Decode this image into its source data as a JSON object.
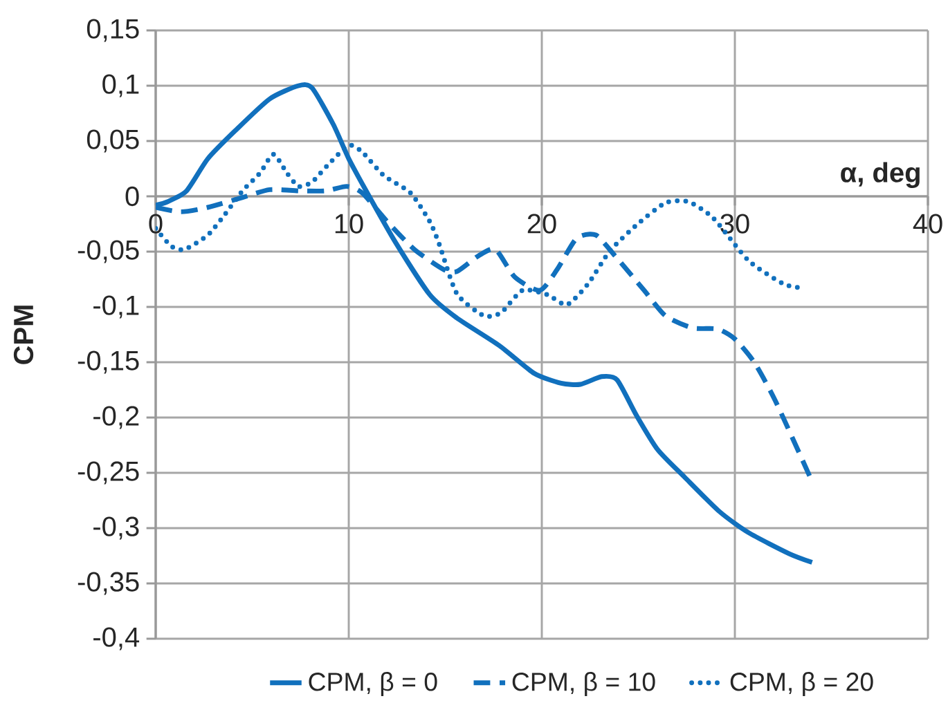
{
  "chart_data": {
    "type": "line",
    "xlabel": "α, deg",
    "ylabel": "CPM",
    "xlim": [
      0,
      40
    ],
    "xticks": [
      0,
      10,
      20,
      30,
      40
    ],
    "ylim": [
      -0.4,
      0.15
    ],
    "yticks": [
      {
        "value": -0.4,
        "label": "-0,4"
      },
      {
        "value": -0.35,
        "label": "-0,35"
      },
      {
        "value": -0.3,
        "label": "-0,3"
      },
      {
        "value": -0.25,
        "label": "-0,25"
      },
      {
        "value": -0.2,
        "label": "-0,2"
      },
      {
        "value": -0.15,
        "label": "-0,15"
      },
      {
        "value": -0.1,
        "label": "-0,1"
      },
      {
        "value": -0.05,
        "label": "-0,05"
      },
      {
        "value": 0,
        "label": "0"
      },
      {
        "value": 0.05,
        "label": "0,05"
      },
      {
        "value": 0.1,
        "label": "0,1"
      },
      {
        "value": 0.15,
        "label": "0,15"
      }
    ],
    "grid": true,
    "legend": "bottom",
    "marker": "none",
    "series": [
      {
        "name": "CPM, β = 0",
        "color": "#1170bd",
        "line_style": "solid",
        "x": [
          0,
          0.6,
          1.6,
          2.7,
          4.1,
          5.9,
          7.4,
          8.1,
          9.2,
          10,
          10.9,
          12.4,
          14.2,
          15.6,
          17.8,
          19.6,
          21,
          22,
          23.1,
          23.9,
          24.9,
          26,
          27.4,
          29.2,
          30.7,
          32.8,
          34
        ],
        "values": [
          -0.008,
          -0.005,
          0.005,
          0.034,
          0.059,
          0.088,
          0.1,
          0.098,
          0.065,
          0.034,
          0.005,
          -0.041,
          -0.089,
          -0.11,
          -0.135,
          -0.16,
          -0.169,
          -0.17,
          -0.163,
          -0.166,
          -0.198,
          -0.229,
          -0.254,
          -0.285,
          -0.304,
          -0.323,
          -0.331
        ]
      },
      {
        "name": "CPM, β = 10",
        "color": "#1170bd",
        "line_style": "dashed",
        "x": [
          0,
          1.3,
          2.7,
          4.5,
          5.9,
          7.4,
          8.8,
          9.9,
          10.7,
          12,
          13.4,
          14.9,
          15.6,
          16.7,
          17.6,
          18.6,
          19.9,
          20.8,
          21.8,
          22.8,
          23.8,
          25.3,
          26.4,
          27.8,
          29.1,
          30,
          31,
          32.1,
          33.9
        ],
        "values": [
          -0.01,
          -0.014,
          -0.01,
          -0.001,
          0.006,
          0.005,
          0.005,
          0.009,
          0.003,
          -0.023,
          -0.048,
          -0.066,
          -0.068,
          -0.054,
          -0.048,
          -0.073,
          -0.085,
          -0.066,
          -0.038,
          -0.035,
          -0.054,
          -0.085,
          -0.108,
          -0.119,
          -0.12,
          -0.129,
          -0.15,
          -0.185,
          -0.254
        ]
      },
      {
        "name": "CPM, β = 20",
        "color": "#1170bd",
        "line_style": "dotted",
        "x": [
          0,
          0.8,
          1.5,
          2.7,
          3.6,
          4.5,
          5.4,
          6.1,
          6.8,
          7.4,
          8.1,
          8.9,
          10,
          10.7,
          11.8,
          13.2,
          14.2,
          14.7,
          15.6,
          17,
          17.9,
          19,
          20.3,
          21.3,
          22.4,
          23.5,
          24.9,
          26.4,
          27.6,
          28.9,
          30.7,
          32.5,
          33.5
        ],
        "values": [
          -0.029,
          -0.045,
          -0.048,
          -0.035,
          -0.016,
          0.005,
          0.021,
          0.038,
          0.021,
          0.009,
          0.013,
          0.028,
          0.046,
          0.04,
          0.019,
          0.003,
          -0.023,
          -0.044,
          -0.088,
          -0.108,
          -0.105,
          -0.085,
          -0.089,
          -0.098,
          -0.079,
          -0.05,
          -0.026,
          -0.006,
          -0.005,
          -0.02,
          -0.058,
          -0.079,
          -0.083
        ]
      }
    ]
  }
}
